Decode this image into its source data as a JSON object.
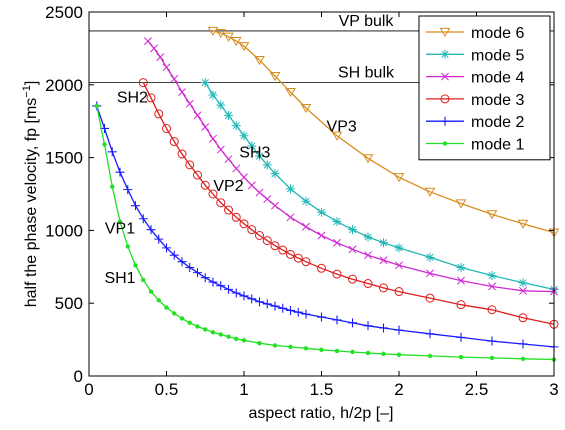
{
  "chart_data": {
    "type": "line",
    "title": "",
    "xlabel": "aspect ratio, h/2p [–]",
    "ylabel_main": "half the phase velocity, fp [ms",
    "ylabel_sup": "−1",
    "ylabel_end": "]",
    "xlim": [
      0,
      3
    ],
    "ylim": [
      0,
      2500
    ],
    "xticks": [
      0,
      0.5,
      1,
      1.5,
      2,
      2.5,
      3
    ],
    "xtick_labels": [
      "0",
      "0.5",
      "1",
      "1.5",
      "2",
      "2.5",
      "3"
    ],
    "yticks": [
      0,
      500,
      1000,
      1500,
      2000,
      2500
    ],
    "ytick_labels": [
      "0",
      "500",
      "1000",
      "1500",
      "2000",
      "2500"
    ],
    "grid": false,
    "legend_placement": "top-right",
    "reference_lines": [
      {
        "label": "VP bulk",
        "y": 2370
      },
      {
        "label": "SH bulk",
        "y": 2015
      }
    ],
    "series": [
      {
        "name": "mode 6",
        "color": "#d98c1f",
        "marker": "triangle-down",
        "x": [
          0.8,
          0.85,
          0.9,
          0.95,
          1.0,
          1.1,
          1.2,
          1.3,
          1.4,
          1.6,
          1.8,
          2.0,
          2.2,
          2.4,
          2.6,
          2.8,
          3.0
        ],
        "y": [
          2370,
          2355,
          2330,
          2300,
          2265,
          2170,
          2060,
          1950,
          1840,
          1650,
          1495,
          1365,
          1265,
          1185,
          1110,
          1045,
          985
        ]
      },
      {
        "name": "mode 5",
        "color": "#22b8b8",
        "marker": "star",
        "x": [
          0.75,
          0.8,
          0.85,
          0.9,
          0.95,
          1.0,
          1.05,
          1.1,
          1.15,
          1.2,
          1.3,
          1.4,
          1.5,
          1.6,
          1.7,
          1.8,
          1.9,
          2.0,
          2.2,
          2.4,
          2.6,
          2.8,
          3.0
        ],
        "y": [
          2015,
          1930,
          1860,
          1790,
          1720,
          1650,
          1580,
          1510,
          1450,
          1390,
          1285,
          1200,
          1125,
          1060,
          1005,
          955,
          915,
          880,
          815,
          745,
          690,
          640,
          595
        ]
      },
      {
        "name": "mode 4",
        "color": "#d028d0",
        "marker": "x",
        "x": [
          0.38,
          0.42,
          0.46,
          0.5,
          0.55,
          0.6,
          0.65,
          0.7,
          0.75,
          0.8,
          0.85,
          0.9,
          0.95,
          1.0,
          1.05,
          1.1,
          1.15,
          1.2,
          1.3,
          1.4,
          1.5,
          1.6,
          1.7,
          1.8,
          1.9,
          2.0,
          2.2,
          2.4,
          2.6,
          2.8,
          3.0
        ],
        "y": [
          2300,
          2250,
          2190,
          2120,
          2040,
          1950,
          1870,
          1790,
          1710,
          1630,
          1555,
          1490,
          1425,
          1365,
          1310,
          1260,
          1215,
          1170,
          1090,
          1025,
          965,
          915,
          870,
          830,
          795,
          760,
          705,
          655,
          615,
          585,
          580
        ]
      },
      {
        "name": "mode 3",
        "color": "#dd1f1f",
        "marker": "circle",
        "x": [
          0.35,
          0.4,
          0.45,
          0.5,
          0.55,
          0.6,
          0.65,
          0.7,
          0.75,
          0.8,
          0.85,
          0.9,
          0.95,
          1.0,
          1.05,
          1.1,
          1.15,
          1.2,
          1.25,
          1.3,
          1.35,
          1.4,
          1.5,
          1.6,
          1.7,
          1.8,
          1.9,
          2.0,
          2.2,
          2.4,
          2.6,
          2.8,
          3.0
        ],
        "y": [
          2015,
          1910,
          1800,
          1700,
          1610,
          1525,
          1450,
          1380,
          1310,
          1250,
          1190,
          1140,
          1090,
          1045,
          1005,
          965,
          930,
          895,
          865,
          835,
          810,
          785,
          740,
          700,
          665,
          635,
          605,
          580,
          535,
          490,
          455,
          400,
          355
        ]
      },
      {
        "name": "mode 2",
        "color": "#1a1aff",
        "marker": "plus",
        "x": [
          0.05,
          0.1,
          0.15,
          0.2,
          0.25,
          0.3,
          0.35,
          0.4,
          0.45,
          0.5,
          0.55,
          0.6,
          0.65,
          0.7,
          0.75,
          0.8,
          0.85,
          0.9,
          0.95,
          1.0,
          1.05,
          1.1,
          1.15,
          1.2,
          1.25,
          1.3,
          1.35,
          1.4,
          1.5,
          1.6,
          1.7,
          1.8,
          1.9,
          2.0,
          2.2,
          2.4,
          2.6,
          2.8,
          3.0
        ],
        "y": [
          1855,
          1700,
          1540,
          1400,
          1280,
          1170,
          1080,
          1005,
          940,
          880,
          830,
          785,
          745,
          710,
          675,
          645,
          620,
          595,
          570,
          550,
          530,
          510,
          495,
          480,
          465,
          450,
          438,
          425,
          405,
          385,
          365,
          345,
          330,
          315,
          290,
          265,
          240,
          220,
          200
        ]
      },
      {
        "name": "mode 1",
        "color": "#22e022",
        "marker": "dot",
        "x": [
          0.05,
          0.1,
          0.15,
          0.2,
          0.25,
          0.3,
          0.35,
          0.4,
          0.45,
          0.5,
          0.55,
          0.6,
          0.65,
          0.7,
          0.75,
          0.8,
          0.85,
          0.9,
          0.95,
          1.0,
          1.1,
          1.2,
          1.3,
          1.4,
          1.5,
          1.6,
          1.7,
          1.8,
          1.9,
          2.0,
          2.2,
          2.4,
          2.6,
          2.8,
          3.0
        ],
        "y": [
          1855,
          1590,
          1300,
          1060,
          890,
          760,
          660,
          580,
          520,
          470,
          430,
          395,
          365,
          340,
          320,
          300,
          285,
          270,
          255,
          245,
          225,
          210,
          200,
          190,
          180,
          172,
          165,
          158,
          152,
          146,
          138,
          130,
          124,
          118,
          113
        ]
      }
    ],
    "annotations": [
      {
        "text": "SH2",
        "x": 0.28,
        "y": 1880
      },
      {
        "text": "SH3",
        "x": 1.07,
        "y": 1500
      },
      {
        "text": "VP2",
        "x": 0.9,
        "y": 1270
      },
      {
        "text": "VP3",
        "x": 1.63,
        "y": 1680
      },
      {
        "text": "VP1",
        "x": 0.2,
        "y": 980
      },
      {
        "text": "SH1",
        "x": 0.2,
        "y": 640
      }
    ]
  }
}
